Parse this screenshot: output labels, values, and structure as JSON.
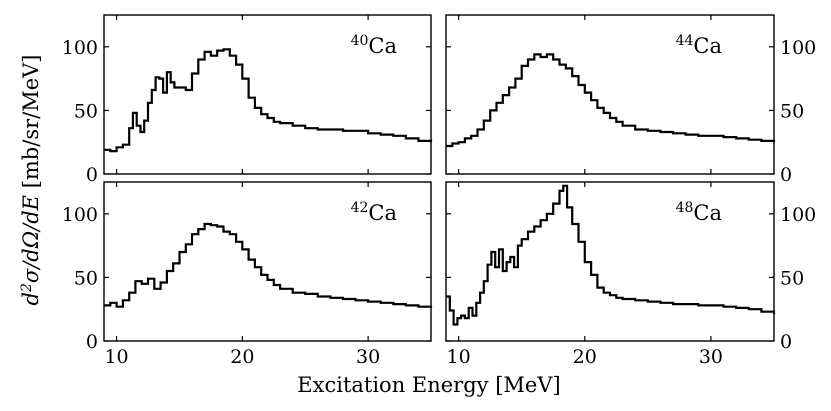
{
  "chart_data": {
    "type": "line",
    "style": "step",
    "layout": "2x2 grid, shared x-axis and y-axis label",
    "xlabel": "Excitation Energy [MeV]",
    "ylabel": "d²σ/dΩ/dE [mb/sr/MeV]",
    "xlim": [
      9,
      35
    ],
    "ylim": [
      0,
      125
    ],
    "xticks": [
      "10",
      "20",
      "30"
    ],
    "xtick_values": [
      10,
      20,
      30
    ],
    "yticks": [
      "0",
      "50",
      "100"
    ],
    "ytick_values": [
      0,
      50,
      100
    ],
    "panels": [
      {
        "id": "ca40",
        "label_mass": "40",
        "label_element": "Ca",
        "ytick_side": "left",
        "x": [
          9,
          9.5,
          10,
          10.5,
          11,
          11.3,
          11.6,
          11.9,
          12.2,
          12.5,
          12.8,
          13.1,
          13.4,
          13.7,
          14,
          14.3,
          14.6,
          15,
          15.5,
          16,
          16.5,
          17,
          17.5,
          18,
          18.5,
          19,
          19.5,
          20,
          20.5,
          21,
          21.5,
          22,
          22.5,
          23,
          24,
          25,
          26,
          27,
          28,
          29,
          30,
          31,
          32,
          33,
          34,
          35
        ],
        "y": [
          19,
          18,
          21,
          23,
          36,
          48,
          38,
          33,
          42,
          56,
          66,
          76,
          75,
          64,
          80,
          72,
          68,
          68,
          66,
          79,
          90,
          96,
          93,
          97,
          98,
          93,
          86,
          75,
          60,
          52,
          47,
          44,
          41,
          40,
          38,
          36,
          35,
          35,
          34,
          34,
          32,
          31,
          30,
          28,
          26,
          25
        ]
      },
      {
        "id": "ca44",
        "label_mass": "44",
        "label_element": "Ca",
        "ytick_side": "right",
        "x": [
          9,
          9.5,
          10,
          10.5,
          11,
          11.5,
          12,
          12.5,
          13,
          13.5,
          14,
          14.5,
          15,
          15.5,
          16,
          16.5,
          17,
          17.5,
          18,
          18.5,
          19,
          19.5,
          20,
          20.5,
          21,
          21.5,
          22,
          22.5,
          23,
          24,
          25,
          26,
          27,
          28,
          29,
          30,
          31,
          32,
          33,
          34,
          35
        ],
        "y": [
          22,
          24,
          25,
          28,
          30,
          35,
          42,
          50,
          56,
          62,
          68,
          75,
          85,
          90,
          94,
          92,
          94,
          90,
          86,
          83,
          77,
          70,
          64,
          58,
          52,
          48,
          44,
          41,
          38,
          35,
          34,
          33,
          32,
          31,
          30,
          30,
          29,
          28,
          27,
          26,
          25
        ]
      },
      {
        "id": "ca42",
        "label_mass": "42",
        "label_element": "Ca",
        "ytick_side": "left",
        "x": [
          9,
          9.5,
          10,
          10.5,
          11,
          11.5,
          12,
          12.5,
          13,
          13.5,
          14,
          14.5,
          15,
          15.5,
          16,
          16.5,
          17,
          17.5,
          18,
          18.5,
          19,
          19.5,
          20,
          20.5,
          21,
          21.5,
          22,
          22.5,
          23,
          24,
          25,
          26,
          27,
          28,
          29,
          30,
          31,
          32,
          33,
          34,
          35
        ],
        "y": [
          28,
          30,
          27,
          32,
          38,
          47,
          45,
          49,
          41,
          46,
          55,
          61,
          70,
          76,
          84,
          88,
          92,
          91,
          90,
          86,
          84,
          78,
          72,
          64,
          58,
          52,
          48,
          44,
          41,
          38,
          37,
          35,
          34,
          33,
          32,
          31,
          30,
          29,
          28,
          27,
          26
        ]
      },
      {
        "id": "ca48",
        "label_mass": "48",
        "label_element": "Ca",
        "ytick_side": "right",
        "x": [
          9,
          9.3,
          9.6,
          9.9,
          10.2,
          10.5,
          10.8,
          11.1,
          11.4,
          11.7,
          12,
          12.3,
          12.6,
          12.9,
          13.2,
          13.5,
          13.8,
          14.1,
          14.4,
          14.7,
          15,
          15.5,
          16,
          16.5,
          17,
          17.5,
          18,
          18.3,
          18.6,
          19,
          19.5,
          20,
          20.5,
          21,
          21.5,
          22,
          22.5,
          23,
          24,
          25,
          26,
          27,
          28,
          29,
          30,
          31,
          32,
          33,
          34,
          35
        ],
        "y": [
          35,
          24,
          13,
          18,
          20,
          18,
          26,
          20,
          30,
          38,
          47,
          60,
          70,
          58,
          72,
          55,
          62,
          66,
          58,
          75,
          80,
          86,
          90,
          95,
          100,
          108,
          118,
          122,
          105,
          92,
          78,
          62,
          52,
          42,
          38,
          36,
          34,
          33,
          32,
          31,
          30,
          29,
          29,
          28,
          28,
          27,
          26,
          25,
          23,
          21
        ]
      }
    ]
  }
}
